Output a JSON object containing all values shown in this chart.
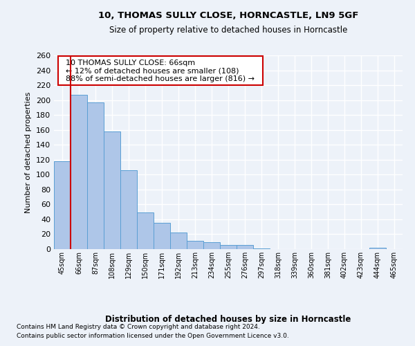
{
  "title1": "10, THOMAS SULLY CLOSE, HORNCASTLE, LN9 5GF",
  "title2": "Size of property relative to detached houses in Horncastle",
  "xlabel": "Distribution of detached houses by size in Horncastle",
  "ylabel": "Number of detached properties",
  "categories": [
    "45sqm",
    "66sqm",
    "87sqm",
    "108sqm",
    "129sqm",
    "150sqm",
    "171sqm",
    "192sqm",
    "213sqm",
    "234sqm",
    "255sqm",
    "276sqm",
    "297sqm",
    "318sqm",
    "339sqm",
    "360sqm",
    "381sqm",
    "402sqm",
    "423sqm",
    "444sqm",
    "465sqm"
  ],
  "values": [
    118,
    207,
    197,
    158,
    106,
    49,
    35,
    22,
    11,
    9,
    6,
    6,
    1,
    0,
    0,
    0,
    0,
    0,
    0,
    2,
    0
  ],
  "bar_color": "#aec6e8",
  "bar_edge_color": "#5a9fd4",
  "highlight_index": 1,
  "highlight_color": "#cc0000",
  "annotation_text": "  10 THOMAS SULLY CLOSE: 66sqm  \n  ← 12% of detached houses are smaller (108)  \n  88% of semi-detached houses are larger (816) →  ",
  "annotation_box_color": "#ffffff",
  "annotation_box_edge": "#cc0000",
  "ylim": [
    0,
    260
  ],
  "yticks": [
    0,
    20,
    40,
    60,
    80,
    100,
    120,
    140,
    160,
    180,
    200,
    220,
    240,
    260
  ],
  "footer1": "Contains HM Land Registry data © Crown copyright and database right 2024.",
  "footer2": "Contains public sector information licensed under the Open Government Licence v3.0.",
  "bg_color": "#edf2f9",
  "grid_color": "#ffffff"
}
